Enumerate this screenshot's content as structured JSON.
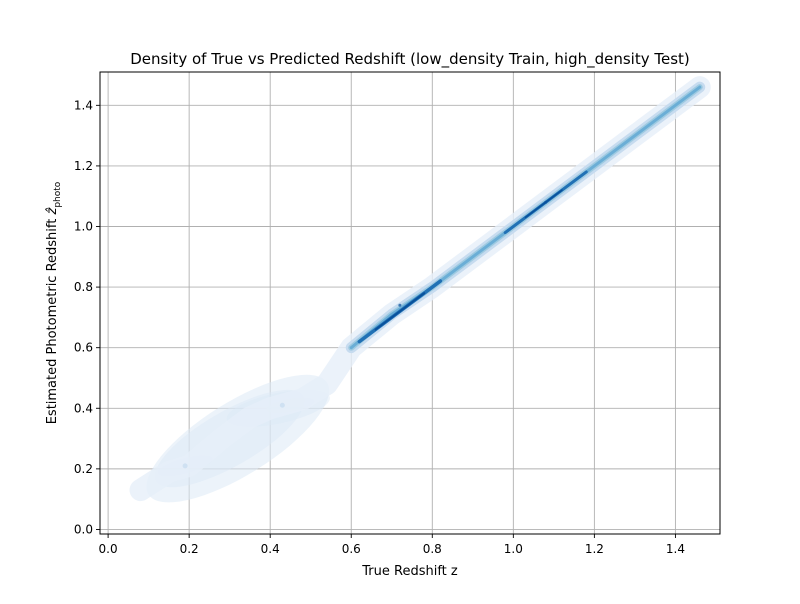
{
  "chart_data": {
    "type": "heatmap",
    "subtype": "kde-density",
    "title": "Density of True vs Predicted Redshift (low_density Train, high_density Test)",
    "xlabel": "True Redshift z",
    "ylabel_prefix": "Estimated Photometric Redshift ",
    "ylabel_symbol": "ẑ",
    "ylabel_subscript": "photo",
    "xlim": [
      -0.02,
      1.51
    ],
    "ylim": [
      -0.015,
      1.51
    ],
    "xticks": [
      "0.0",
      "0.2",
      "0.4",
      "0.6",
      "0.8",
      "1.0",
      "1.2",
      "1.4"
    ],
    "yticks": [
      "0.0",
      "0.2",
      "0.4",
      "0.6",
      "0.8",
      "1.0",
      "1.2",
      "1.4"
    ],
    "grid": true,
    "colormap": "Blues",
    "colors": {
      "light": "#eef4fb",
      "mid": "#9ecae1",
      "dark": "#2171b5",
      "darkest": "#08519c",
      "grid": "#b0b0b0"
    },
    "ridge": [
      {
        "x": 0.08,
        "y": 0.13
      },
      {
        "x": 0.15,
        "y": 0.19
      },
      {
        "x": 0.2,
        "y": 0.21
      },
      {
        "x": 0.28,
        "y": 0.3
      },
      {
        "x": 0.35,
        "y": 0.37
      },
      {
        "x": 0.4,
        "y": 0.4
      },
      {
        "x": 0.48,
        "y": 0.43
      },
      {
        "x": 0.54,
        "y": 0.48
      },
      {
        "x": 0.6,
        "y": 0.6
      },
      {
        "x": 0.7,
        "y": 0.71
      },
      {
        "x": 0.8,
        "y": 0.8
      },
      {
        "x": 0.9,
        "y": 0.9
      },
      {
        "x": 1.0,
        "y": 1.0
      },
      {
        "x": 1.1,
        "y": 1.1
      },
      {
        "x": 1.2,
        "y": 1.2
      },
      {
        "x": 1.3,
        "y": 1.3
      },
      {
        "x": 1.4,
        "y": 1.4
      },
      {
        "x": 1.46,
        "y": 1.46
      }
    ],
    "density_peaks": [
      {
        "x": 0.19,
        "y": 0.21,
        "level": "light"
      },
      {
        "x": 0.43,
        "y": 0.41,
        "level": "light"
      },
      {
        "x": 0.72,
        "y": 0.74,
        "level": "dark"
      },
      {
        "x": 1.08,
        "y": 1.08,
        "level": "dark"
      }
    ]
  }
}
